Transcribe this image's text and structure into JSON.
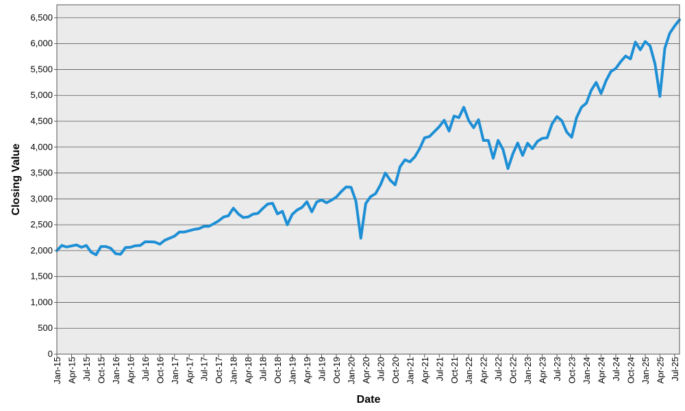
{
  "chart_data": {
    "type": "line",
    "x_label": "Date",
    "y_label": "Closing Value",
    "categories": [
      "Jan-15",
      null,
      null,
      "Apr-15",
      null,
      null,
      "Jul-15",
      null,
      null,
      "Oct-15",
      null,
      null,
      "Jan-16",
      null,
      null,
      "Apr-16",
      null,
      null,
      "Jul-16",
      null,
      null,
      "Oct-16",
      null,
      null,
      "Jan-17",
      null,
      null,
      "Apr-17",
      null,
      null,
      "Jul-17",
      null,
      null,
      "Oct-17",
      null,
      null,
      "Jan-18",
      null,
      null,
      "Apr-18",
      null,
      null,
      "Jul-18",
      null,
      null,
      "Oct-18",
      null,
      null,
      "Jan-19",
      null,
      null,
      "Apr-19",
      null,
      null,
      "Jul-19",
      null,
      null,
      "Oct-19",
      null,
      null,
      "Jan-20",
      null,
      null,
      "Apr-20",
      null,
      null,
      "Jul-20",
      null,
      null,
      "Oct-20",
      null,
      null,
      "Jan-21",
      null,
      null,
      "Apr-21",
      null,
      null,
      "Jul-21",
      null,
      null,
      "Oct-21",
      null,
      null,
      "Jan-22",
      null,
      null,
      "Apr-22",
      null,
      null,
      "Jul-22",
      null,
      null,
      "Oct-22",
      null,
      null,
      "Jan-23",
      null,
      null,
      "Apr-23",
      null,
      null,
      "Jul-23",
      null,
      null,
      "Oct-23",
      null,
      null,
      "Jan-24",
      null,
      null,
      "Apr-24",
      null,
      null,
      "Jul-24",
      null,
      null,
      "Oct-24",
      null,
      null,
      "Jan-25",
      null,
      null,
      "Apr-25",
      null,
      null,
      "Jul-25",
      null
    ],
    "values": [
      2000,
      2100,
      2070,
      2090,
      2110,
      2065,
      2100,
      1970,
      1920,
      2080,
      2080,
      2045,
      1940,
      1930,
      2060,
      2065,
      2095,
      2100,
      2170,
      2170,
      2165,
      2125,
      2200,
      2240,
      2280,
      2360,
      2360,
      2385,
      2410,
      2425,
      2470,
      2470,
      2520,
      2575,
      2650,
      2675,
      2820,
      2710,
      2640,
      2650,
      2705,
      2720,
      2815,
      2900,
      2915,
      2710,
      2760,
      2500,
      2700,
      2785,
      2835,
      2945,
      2750,
      2940,
      2980,
      2925,
      2975,
      3035,
      3140,
      3230,
      3225,
      2955,
      2240,
      2910,
      3045,
      3100,
      3270,
      3500,
      3360,
      3270,
      3620,
      3755,
      3715,
      3810,
      3970,
      4180,
      4205,
      4300,
      4395,
      4520,
      4310,
      4600,
      4570,
      4770,
      4515,
      4375,
      4530,
      4130,
      4130,
      3785,
      4130,
      3955,
      3585,
      3870,
      4080,
      3840,
      4075,
      3970,
      4110,
      4170,
      4180,
      4450,
      4590,
      4510,
      4290,
      4190,
      4570,
      4770,
      4850,
      5100,
      5250,
      5035,
      5280,
      5460,
      5520,
      5650,
      5760,
      5705,
      6030,
      5880,
      6040,
      5955,
      5610,
      4980,
      5910,
      6200,
      6340,
      6460
    ],
    "color": "#1e8fd5",
    "ylim": [
      0,
      6750
    ],
    "yticks": [
      0,
      500,
      {
        "value": 1000,
        "label": "1,000"
      },
      {
        "value": 1500,
        "label": "1,500"
      },
      {
        "value": 2000,
        "label": "2,000"
      },
      {
        "value": 2500,
        "label": "2,500"
      },
      {
        "value": 3000,
        "label": "3,000"
      },
      {
        "value": 3500,
        "label": "3,500"
      },
      {
        "value": 4000,
        "label": "4,000"
      },
      {
        "value": 4500,
        "label": "4,500"
      },
      {
        "value": 5000,
        "label": "5,000"
      },
      {
        "value": 5500,
        "label": "5,500"
      },
      {
        "value": 6000,
        "label": "6,000"
      },
      {
        "value": 6500,
        "label": "6,500"
      }
    ],
    "grid": true
  }
}
